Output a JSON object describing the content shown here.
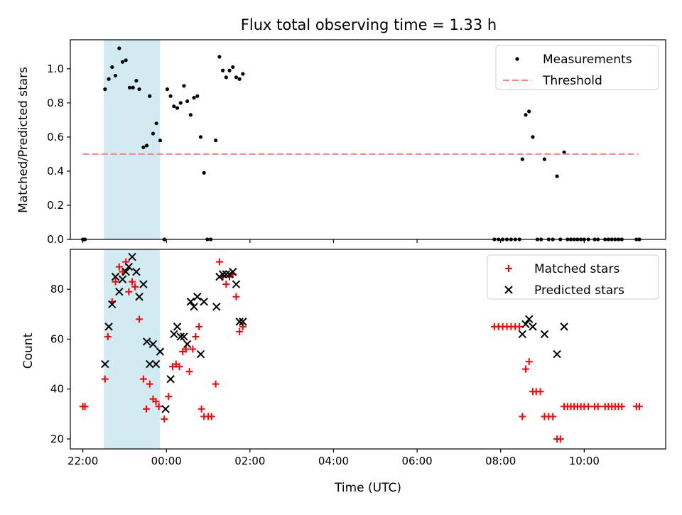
{
  "chart_data": [
    {
      "type": "scatter",
      "title": "Flux total observing time = 1.33 h",
      "ylabel": "Matched/Predicted stars",
      "xlabel": "",
      "x_unit": "hours relative to 00:00 UTC",
      "xlim": [
        -2.3,
        11.95
      ],
      "ylim": [
        0,
        1.17
      ],
      "yticks": [
        "0.0",
        "0.2",
        "0.4",
        "0.6",
        "0.8",
        "1.0"
      ],
      "ytick_values": [
        0,
        0.2,
        0.4,
        0.6,
        0.8,
        1.0
      ],
      "shaded_span": [
        -1.5,
        -0.15
      ],
      "shade_color": "#add8e6",
      "legend": {
        "placement": "top-right",
        "entries": [
          "Measurements",
          "Threshold"
        ]
      },
      "series": [
        {
          "name": "Measurements",
          "marker": "dot",
          "color": "#000000",
          "points": [
            [
              -2.0,
              0
            ],
            [
              -1.95,
              0
            ],
            [
              -1.47,
              0.88
            ],
            [
              -1.38,
              0.94
            ],
            [
              -1.3,
              1.01
            ],
            [
              -1.22,
              0.96
            ],
            [
              -1.13,
              1.12
            ],
            [
              -1.05,
              1.04
            ],
            [
              -0.97,
              1.05
            ],
            [
              -0.88,
              0.89
            ],
            [
              -0.8,
              0.89
            ],
            [
              -0.72,
              0.93
            ],
            [
              -0.65,
              0.88
            ],
            [
              -0.55,
              0.54
            ],
            [
              -0.47,
              0.55
            ],
            [
              -0.4,
              0.84
            ],
            [
              -0.32,
              0.62
            ],
            [
              -0.24,
              0.68
            ],
            [
              -0.15,
              0.58
            ],
            [
              -0.05,
              0
            ],
            [
              0.02,
              0.88
            ],
            [
              0.1,
              0.84
            ],
            [
              0.18,
              0.78
            ],
            [
              0.26,
              0.77
            ],
            [
              0.34,
              0.8
            ],
            [
              0.42,
              0.9
            ],
            [
              0.5,
              0.81
            ],
            [
              0.58,
              0.73
            ],
            [
              0.66,
              0.83
            ],
            [
              0.74,
              0.84
            ],
            [
              0.82,
              0.6
            ],
            [
              0.9,
              0.39
            ],
            [
              0.98,
              0
            ],
            [
              1.06,
              0
            ],
            [
              1.18,
              0.58
            ],
            [
              1.27,
              1.07
            ],
            [
              1.35,
              0.99
            ],
            [
              1.43,
              0.95
            ],
            [
              1.51,
              0.99
            ],
            [
              1.59,
              1.01
            ],
            [
              1.67,
              0.95
            ],
            [
              1.75,
              0.94
            ],
            [
              1.83,
              0.97
            ],
            [
              7.85,
              0
            ],
            [
              7.95,
              0
            ],
            [
              8.05,
              0
            ],
            [
              8.15,
              0
            ],
            [
              8.25,
              0
            ],
            [
              8.35,
              0
            ],
            [
              8.45,
              0
            ],
            [
              8.52,
              0.47
            ],
            [
              8.6,
              0.73
            ],
            [
              8.68,
              0.75
            ],
            [
              8.77,
              0.6
            ],
            [
              8.88,
              0
            ],
            [
              8.97,
              0
            ],
            [
              9.05,
              0.47
            ],
            [
              9.15,
              0
            ],
            [
              9.25,
              0
            ],
            [
              9.35,
              0.37
            ],
            [
              9.43,
              0
            ],
            [
              9.52,
              0.51
            ],
            [
              9.6,
              0
            ],
            [
              9.68,
              0
            ],
            [
              9.76,
              0
            ],
            [
              9.84,
              0
            ],
            [
              9.92,
              0
            ],
            [
              10.0,
              0
            ],
            [
              10.1,
              0
            ],
            [
              10.25,
              0
            ],
            [
              10.33,
              0
            ],
            [
              10.5,
              0
            ],
            [
              10.58,
              0
            ],
            [
              10.66,
              0
            ],
            [
              10.74,
              0
            ],
            [
              10.82,
              0
            ],
            [
              10.9,
              0
            ],
            [
              11.25,
              0
            ],
            [
              11.32,
              0
            ]
          ]
        },
        {
          "name": "Threshold",
          "style": "dashed",
          "color": "#ff7f7f",
          "y": 0.5,
          "x_range": [
            -2.0,
            11.3
          ]
        }
      ]
    },
    {
      "type": "scatter",
      "title": "",
      "ylabel": "Count",
      "xlabel": "Time (UTC)",
      "x_unit": "hours relative to 00:00 UTC",
      "xlim": [
        -2.3,
        11.95
      ],
      "ylim": [
        16,
        96
      ],
      "xticks": [
        "22:00",
        "00:00",
        "02:00",
        "04:00",
        "06:00",
        "08:00",
        "10:00"
      ],
      "xtick_values": [
        -2,
        0,
        2,
        4,
        6,
        8,
        10
      ],
      "yticks": [
        "20",
        "40",
        "60",
        "80"
      ],
      "ytick_values": [
        20,
        40,
        60,
        80
      ],
      "shaded_span": [
        -1.5,
        -0.15
      ],
      "shade_color": "#add8e6",
      "legend": {
        "placement": "top-right",
        "entries": [
          "Matched stars",
          "Predicted stars"
        ]
      },
      "series": [
        {
          "name": "Matched stars",
          "marker": "plus",
          "color": "#ff0000",
          "points": [
            [
              -2.0,
              33
            ],
            [
              -1.95,
              33
            ],
            [
              -1.47,
              44
            ],
            [
              -1.4,
              61
            ],
            [
              -1.3,
              75
            ],
            [
              -1.22,
              83
            ],
            [
              -1.13,
              89
            ],
            [
              -1.05,
              87
            ],
            [
              -0.97,
              91
            ],
            [
              -0.9,
              79
            ],
            [
              -0.82,
              83
            ],
            [
              -0.75,
              81
            ],
            [
              -0.65,
              68
            ],
            [
              -0.55,
              44
            ],
            [
              -0.48,
              32
            ],
            [
              -0.4,
              42
            ],
            [
              -0.32,
              36
            ],
            [
              -0.25,
              35
            ],
            [
              -0.18,
              33
            ],
            [
              -0.05,
              28
            ],
            [
              0.05,
              37
            ],
            [
              0.15,
              49
            ],
            [
              0.23,
              50
            ],
            [
              0.31,
              49
            ],
            [
              0.39,
              55
            ],
            [
              0.47,
              56
            ],
            [
              0.55,
              47
            ],
            [
              0.63,
              56
            ],
            [
              0.7,
              61
            ],
            [
              0.78,
              65
            ],
            [
              0.84,
              32
            ],
            [
              0.9,
              29
            ],
            [
              1.0,
              29
            ],
            [
              1.08,
              29
            ],
            [
              1.18,
              42
            ],
            [
              1.27,
              91
            ],
            [
              1.35,
              85
            ],
            [
              1.43,
              82
            ],
            [
              1.51,
              85
            ],
            [
              1.59,
              86
            ],
            [
              1.67,
              77
            ],
            [
              1.75,
              63
            ],
            [
              1.83,
              65
            ],
            [
              7.85,
              65
            ],
            [
              7.95,
              65
            ],
            [
              8.05,
              65
            ],
            [
              8.15,
              65
            ],
            [
              8.25,
              65
            ],
            [
              8.35,
              65
            ],
            [
              8.45,
              65
            ],
            [
              8.52,
              29
            ],
            [
              8.6,
              48
            ],
            [
              8.68,
              51
            ],
            [
              8.77,
              39
            ],
            [
              8.85,
              39
            ],
            [
              8.95,
              39
            ],
            [
              9.05,
              29
            ],
            [
              9.15,
              29
            ],
            [
              9.25,
              29
            ],
            [
              9.35,
              20
            ],
            [
              9.43,
              20
            ],
            [
              9.52,
              33
            ],
            [
              9.6,
              33
            ],
            [
              9.68,
              33
            ],
            [
              9.76,
              33
            ],
            [
              9.84,
              33
            ],
            [
              9.92,
              33
            ],
            [
              10.0,
              33
            ],
            [
              10.1,
              33
            ],
            [
              10.25,
              33
            ],
            [
              10.33,
              33
            ],
            [
              10.5,
              33
            ],
            [
              10.58,
              33
            ],
            [
              10.66,
              33
            ],
            [
              10.74,
              33
            ],
            [
              10.82,
              33
            ],
            [
              10.9,
              33
            ],
            [
              11.25,
              33
            ],
            [
              11.32,
              33
            ]
          ]
        },
        {
          "name": "Predicted stars",
          "marker": "x",
          "color": "#000000",
          "points": [
            [
              -1.47,
              50
            ],
            [
              -1.38,
              65
            ],
            [
              -1.3,
              74
            ],
            [
              -1.22,
              85
            ],
            [
              -1.13,
              79
            ],
            [
              -1.05,
              84
            ],
            [
              -0.97,
              87
            ],
            [
              -0.9,
              89
            ],
            [
              -0.82,
              93
            ],
            [
              -0.72,
              87
            ],
            [
              -0.65,
              77
            ],
            [
              -0.55,
              82
            ],
            [
              -0.47,
              59
            ],
            [
              -0.4,
              50
            ],
            [
              -0.32,
              58
            ],
            [
              -0.25,
              50
            ],
            [
              -0.15,
              55
            ],
            [
              -0.02,
              32
            ],
            [
              0.1,
              44
            ],
            [
              0.18,
              62
            ],
            [
              0.26,
              65
            ],
            [
              0.34,
              61
            ],
            [
              0.42,
              61
            ],
            [
              0.5,
              58
            ],
            [
              0.58,
              75
            ],
            [
              0.66,
              73
            ],
            [
              0.74,
              77
            ],
            [
              0.82,
              54
            ],
            [
              0.9,
              75
            ],
            [
              1.2,
              73
            ],
            [
              1.27,
              85
            ],
            [
              1.35,
              86
            ],
            [
              1.43,
              86
            ],
            [
              1.51,
              86
            ],
            [
              1.59,
              87
            ],
            [
              1.67,
              82
            ],
            [
              1.75,
              67
            ],
            [
              1.83,
              67
            ],
            [
              8.52,
              62
            ],
            [
              8.6,
              66
            ],
            [
              8.68,
              68
            ],
            [
              8.77,
              65
            ],
            [
              9.05,
              62
            ],
            [
              9.35,
              54
            ],
            [
              9.52,
              65
            ]
          ]
        }
      ]
    }
  ]
}
